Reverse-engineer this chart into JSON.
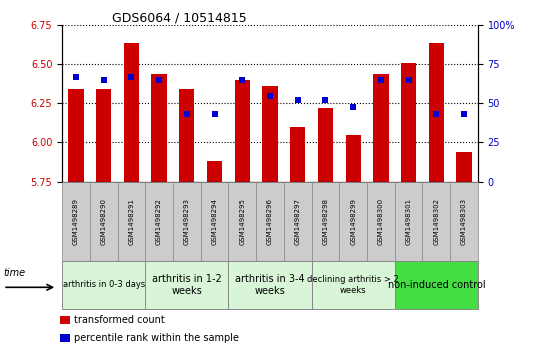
{
  "title": "GDS6064 / 10514815",
  "samples": [
    "GSM1498289",
    "GSM1498290",
    "GSM1498291",
    "GSM1498292",
    "GSM1498293",
    "GSM1498294",
    "GSM1498295",
    "GSM1498296",
    "GSM1498297",
    "GSM1498298",
    "GSM1498299",
    "GSM1498300",
    "GSM1498301",
    "GSM1498302",
    "GSM1498303"
  ],
  "bar_values": [
    6.34,
    6.34,
    6.64,
    6.44,
    6.34,
    5.88,
    6.4,
    6.36,
    6.1,
    6.22,
    6.05,
    6.44,
    6.51,
    6.64,
    5.94
  ],
  "percentile_values": [
    67,
    65,
    67,
    65,
    43,
    43,
    65,
    55,
    52,
    52,
    48,
    65,
    65,
    43,
    43
  ],
  "ylim_left": [
    5.75,
    6.75
  ],
  "ylim_right": [
    0,
    100
  ],
  "yticks_left": [
    5.75,
    6.0,
    6.25,
    6.5,
    6.75
  ],
  "yticks_right": [
    0,
    25,
    50,
    75,
    100
  ],
  "bar_color": "#cc0000",
  "dot_color": "#0000cc",
  "bar_width": 0.55,
  "groups": [
    {
      "label": "arthritis in 0-3 days",
      "start": 0,
      "end": 3,
      "color": "#d8f5d8",
      "fontsize": 6
    },
    {
      "label": "arthritis in 1-2\nweeks",
      "start": 3,
      "end": 6,
      "color": "#d8f5d8",
      "fontsize": 7
    },
    {
      "label": "arthritis in 3-4\nweeks",
      "start": 6,
      "end": 9,
      "color": "#d8f5d8",
      "fontsize": 7
    },
    {
      "label": "declining arthritis > 2\nweeks",
      "start": 9,
      "end": 12,
      "color": "#d8f5d8",
      "fontsize": 6
    },
    {
      "label": "non-induced control",
      "start": 12,
      "end": 15,
      "color": "#44dd44",
      "fontsize": 7
    }
  ],
  "legend_items": [
    {
      "label": "transformed count",
      "color": "#cc0000"
    },
    {
      "label": "percentile rank within the sample",
      "color": "#0000cc"
    }
  ],
  "bg_color": "#ffffff",
  "label_box_color": "#cccccc",
  "label_box_edge": "#888888"
}
